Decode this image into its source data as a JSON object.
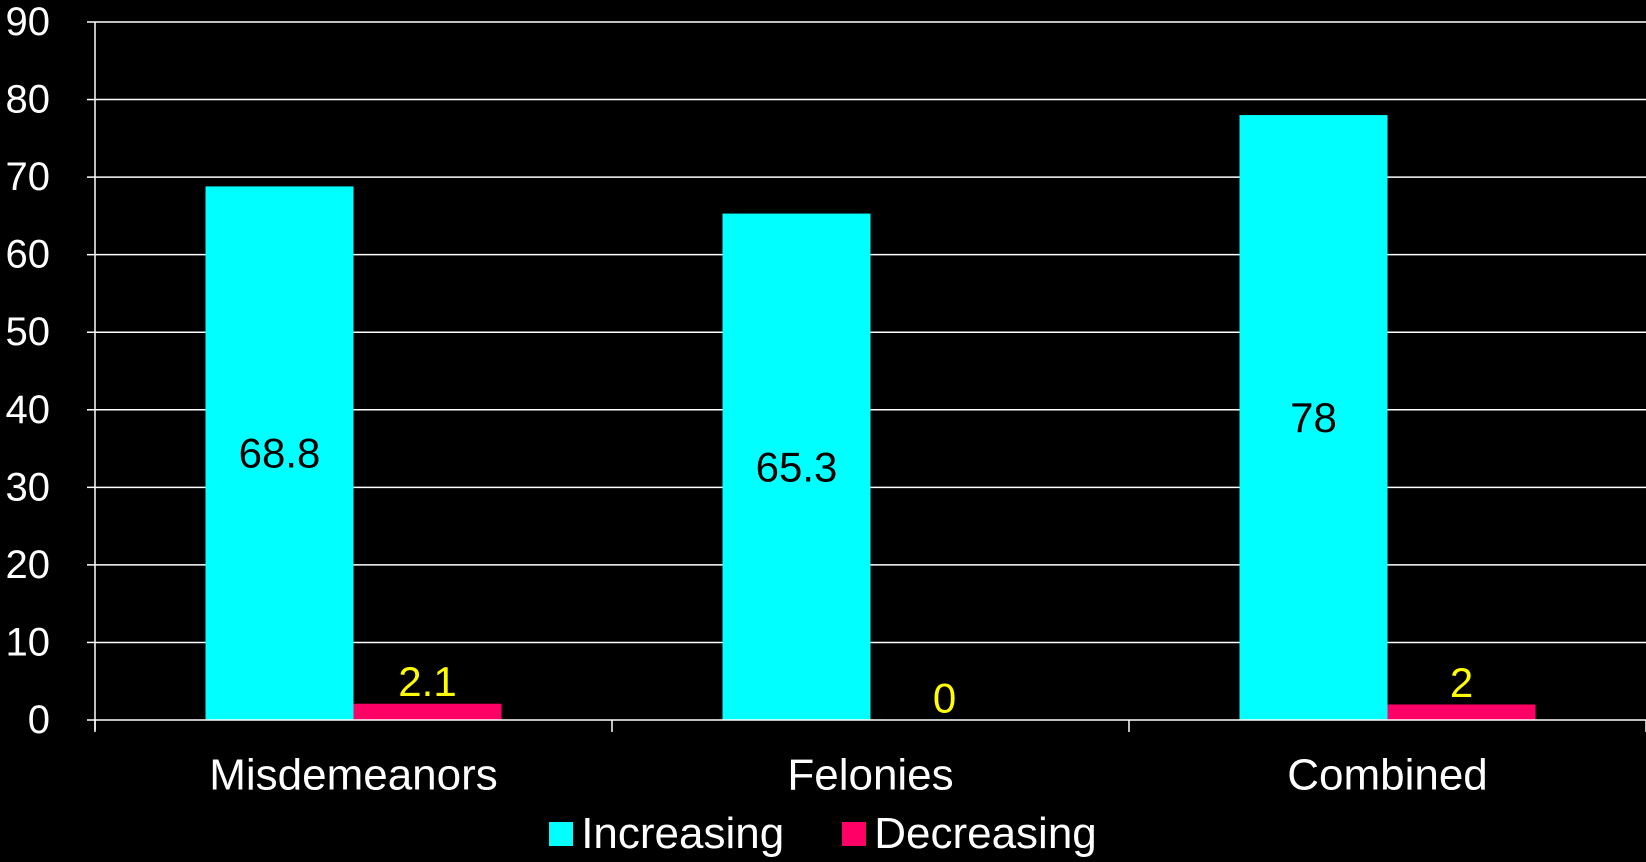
{
  "chart_data": {
    "type": "bar",
    "categories": [
      "Misdemeanors",
      "Felonies",
      "Combined"
    ],
    "series": [
      {
        "name": "Increasing",
        "values": [
          68.8,
          65.3,
          78
        ],
        "labels": [
          "68.8",
          "65.3",
          "78"
        ],
        "color": "#00FFFF",
        "label_color": "#000000"
      },
      {
        "name": "Decreasing",
        "values": [
          2.1,
          0,
          2
        ],
        "labels": [
          "2.1",
          "0",
          "2"
        ],
        "color": "#FF0066",
        "label_color": "#FFFF00"
      }
    ],
    "ylim": [
      0,
      90
    ],
    "yticks": [
      "0",
      "10",
      "20",
      "30",
      "40",
      "50",
      "60",
      "70",
      "80",
      "90"
    ],
    "grid": true,
    "legend_position": "bottom",
    "xlabel": "",
    "ylabel": "",
    "title": ""
  }
}
